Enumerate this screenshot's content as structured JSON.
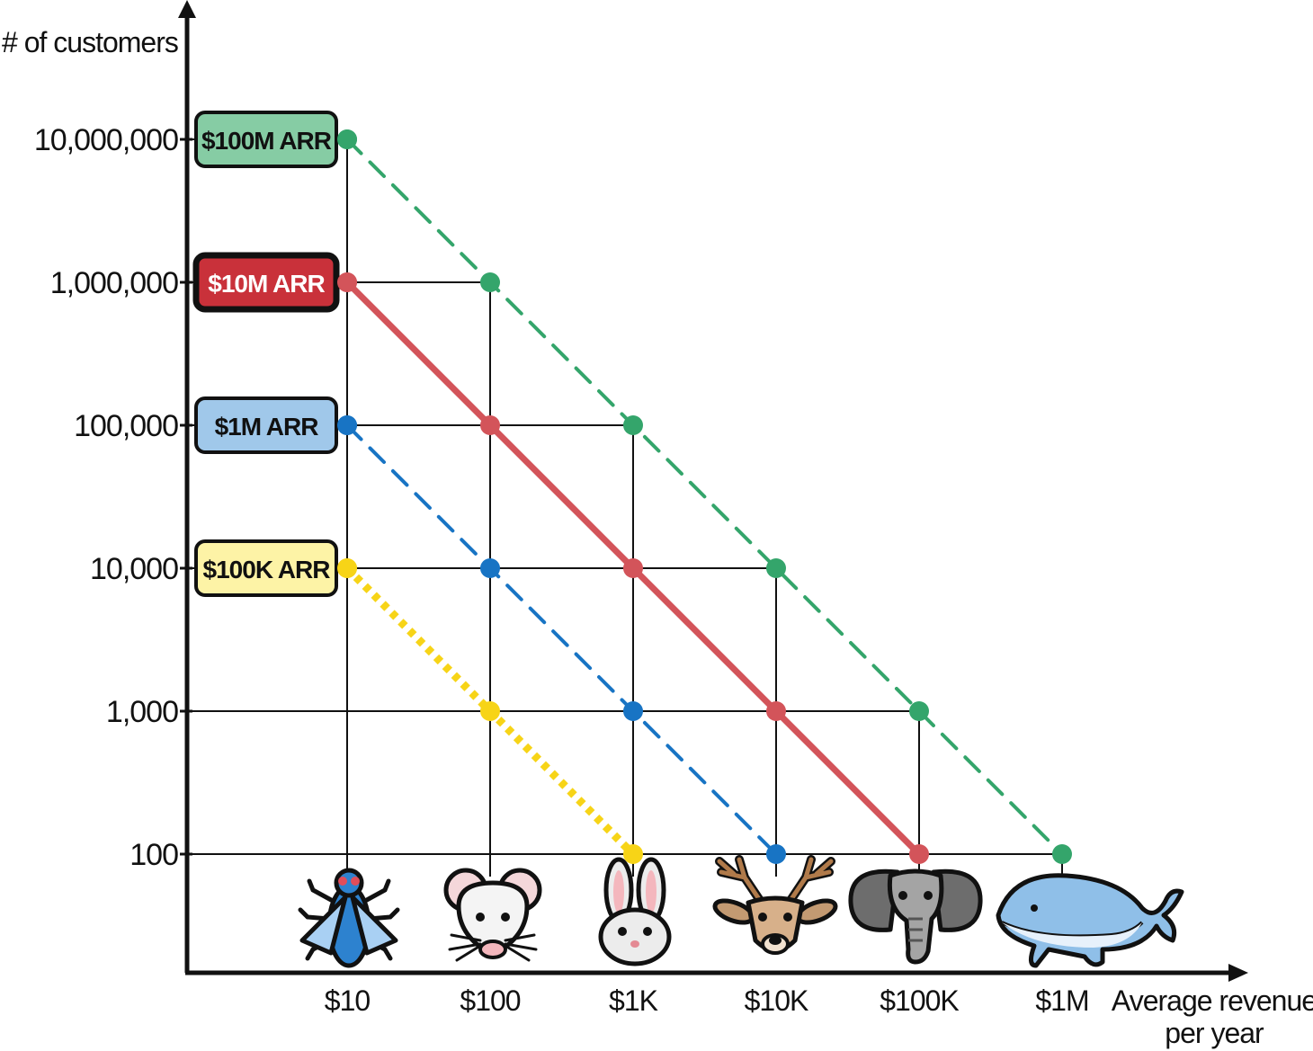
{
  "chart_data": {
    "type": "line",
    "ylabel": "# of customers",
    "xlabel_lines": [
      "Average revenue",
      "per year"
    ],
    "x_ticks": [
      "$10",
      "$100",
      "$1K",
      "$10K",
      "$100K",
      "$1M"
    ],
    "x_values": [
      10,
      100,
      1000,
      10000,
      100000,
      1000000
    ],
    "y_ticks": [
      "10,000,000",
      "1,000,000",
      "100,000",
      "10,000",
      "1,000",
      "100"
    ],
    "y_values": [
      10000000,
      1000000,
      100000,
      10000,
      1000,
      100
    ],
    "x_scale": "log",
    "y_scale": "log",
    "grid": true,
    "series": [
      {
        "name": "$100M ARR",
        "color": "#34a56b",
        "badge_fill": "#86ccA4",
        "badge_text_color": "#111111",
        "line_style": "dashed",
        "points": [
          [
            10,
            10000000
          ],
          [
            100,
            1000000
          ],
          [
            1000,
            100000
          ],
          [
            10000,
            10000
          ],
          [
            100000,
            1000
          ],
          [
            1000000,
            100
          ]
        ]
      },
      {
        "name": "$10M ARR",
        "color": "#d3545a",
        "badge_fill": "#c9313a",
        "badge_text_color": "#ffffff",
        "line_style": "solid",
        "points": [
          [
            10,
            1000000
          ],
          [
            100,
            100000
          ],
          [
            1000,
            10000
          ],
          [
            10000,
            1000
          ],
          [
            100000,
            100
          ]
        ]
      },
      {
        "name": "$1M ARR",
        "color": "#1874c4",
        "badge_fill": "#a0c8ea",
        "badge_text_color": "#111111",
        "line_style": "dashed",
        "points": [
          [
            10,
            100000
          ],
          [
            100,
            10000
          ],
          [
            1000,
            1000
          ],
          [
            10000,
            100
          ]
        ]
      },
      {
        "name": "$100K ARR",
        "color": "#f7d417",
        "badge_fill": "#fdf3a6",
        "badge_text_color": "#111111",
        "line_style": "dotted",
        "points": [
          [
            10,
            10000
          ],
          [
            100,
            1000
          ],
          [
            1000,
            100
          ]
        ]
      }
    ],
    "animals": [
      {
        "icon": "fly-icon",
        "x": 10
      },
      {
        "icon": "mouse-icon",
        "x": 100
      },
      {
        "icon": "rabbit-icon",
        "x": 1000
      },
      {
        "icon": "deer-icon",
        "x": 10000
      },
      {
        "icon": "elephant-icon",
        "x": 100000
      },
      {
        "icon": "whale-icon",
        "x": 1000000
      }
    ]
  }
}
